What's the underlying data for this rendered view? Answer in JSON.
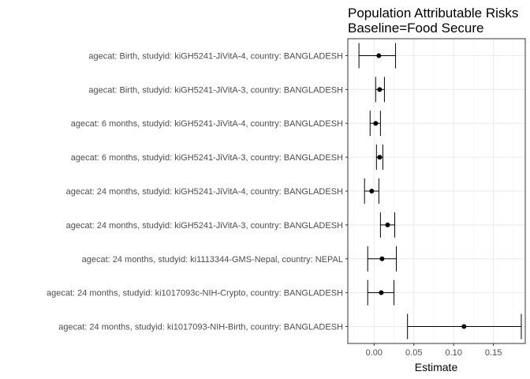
{
  "chart_data": {
    "type": "forest",
    "title": "Population Attributable Risks",
    "subtitle": "Baseline=Food Secure",
    "xlabel": "Estimate",
    "ylabel": "",
    "xlim": [
      -0.033,
      0.19
    ],
    "xticks": [
      0.0,
      0.05,
      0.1,
      0.15
    ],
    "xtick_labels": [
      "0.00",
      "0.05",
      "0.10",
      "0.15"
    ],
    "grid": true,
    "colors": {
      "panel_border": "#333333",
      "grid_major": "#ebebeb",
      "grid_minor": "#f5f5f5",
      "mark": "#000000"
    },
    "rows": [
      {
        "label": "agecat: Birth, studyid: kiGH5241-JiVitA-4, country: BANGLADESH",
        "estimate": 0.006,
        "lower": -0.019,
        "upper": 0.027
      },
      {
        "label": "agecat: Birth, studyid: kiGH5241-JiVitA-3, country: BANGLADESH",
        "estimate": 0.007,
        "lower": 0.002,
        "upper": 0.013
      },
      {
        "label": "agecat: 6 months, studyid: kiGH5241-JiVitA-4, country: BANGLADESH",
        "estimate": 0.002,
        "lower": -0.005,
        "upper": 0.008
      },
      {
        "label": "agecat: 6 months, studyid: kiGH5241-JiVitA-3, country: BANGLADESH",
        "estimate": 0.007,
        "lower": 0.003,
        "upper": 0.011
      },
      {
        "label": "agecat: 24 months, studyid: kiGH5241-JiVitA-4, country: BANGLADESH",
        "estimate": -0.003,
        "lower": -0.012,
        "upper": 0.006
      },
      {
        "label": "agecat: 24 months, studyid: kiGH5241-JiVitA-3, country: BANGLADESH",
        "estimate": 0.017,
        "lower": 0.008,
        "upper": 0.026
      },
      {
        "label": "agecat: 24 months, studyid: ki1113344-GMS-Nepal, country: NEPAL",
        "estimate": 0.01,
        "lower": -0.008,
        "upper": 0.028
      },
      {
        "label": "agecat: 24 months, studyid: ki1017093c-NIH-Crypto, country: BANGLADESH",
        "estimate": 0.009,
        "lower": -0.008,
        "upper": 0.025
      },
      {
        "label": "agecat: 24 months, studyid: ki1017093-NIH-Birth, country: BANGLADESH",
        "estimate": 0.113,
        "lower": 0.042,
        "upper": 0.185
      }
    ]
  }
}
